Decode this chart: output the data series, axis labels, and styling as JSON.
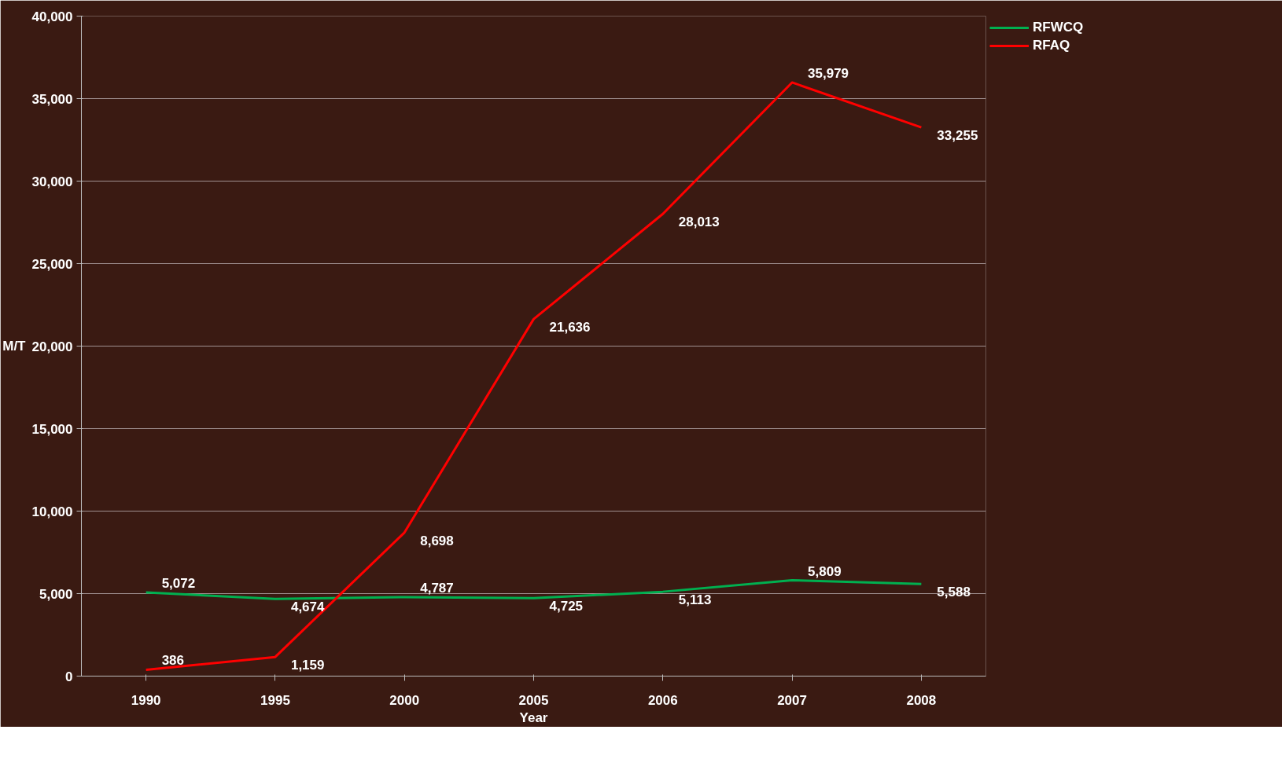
{
  "chart_data": {
    "type": "line",
    "xlabel": "Year",
    "ylabel": "M/T",
    "categories": [
      "1990",
      "1995",
      "2000",
      "2005",
      "2006",
      "2007",
      "2008"
    ],
    "series": [
      {
        "name": "RFWCQ",
        "color": "#00b050",
        "values": [
          5072,
          4674,
          4787,
          4725,
          5113,
          5809,
          5588
        ],
        "value_labels": [
          "5,072",
          "4,674",
          "4,787",
          "4,725",
          "5,113",
          "5,809",
          "5,588"
        ]
      },
      {
        "name": "RFAQ",
        "color": "#ff0000",
        "values": [
          386,
          1159,
          8698,
          21636,
          28013,
          35979,
          33255
        ],
        "value_labels": [
          "386",
          "1,159",
          "8,698",
          "21,636",
          "28,013",
          "35,979",
          "33,255"
        ]
      }
    ],
    "ylim": [
      0,
      40000
    ],
    "yticks": [
      {
        "value": 0,
        "label": "0"
      },
      {
        "value": 5000,
        "label": "5,000"
      },
      {
        "value": 10000,
        "label": "10,000"
      },
      {
        "value": 15000,
        "label": "15,000"
      },
      {
        "value": 20000,
        "label": "20,000"
      },
      {
        "value": 25000,
        "label": "25,000"
      },
      {
        "value": 30000,
        "label": "30,000"
      },
      {
        "value": 35000,
        "label": "35,000"
      },
      {
        "value": 40000,
        "label": "40,000"
      }
    ],
    "grid": "y",
    "legend": "top right",
    "marker": "none",
    "line_style": "solid"
  }
}
